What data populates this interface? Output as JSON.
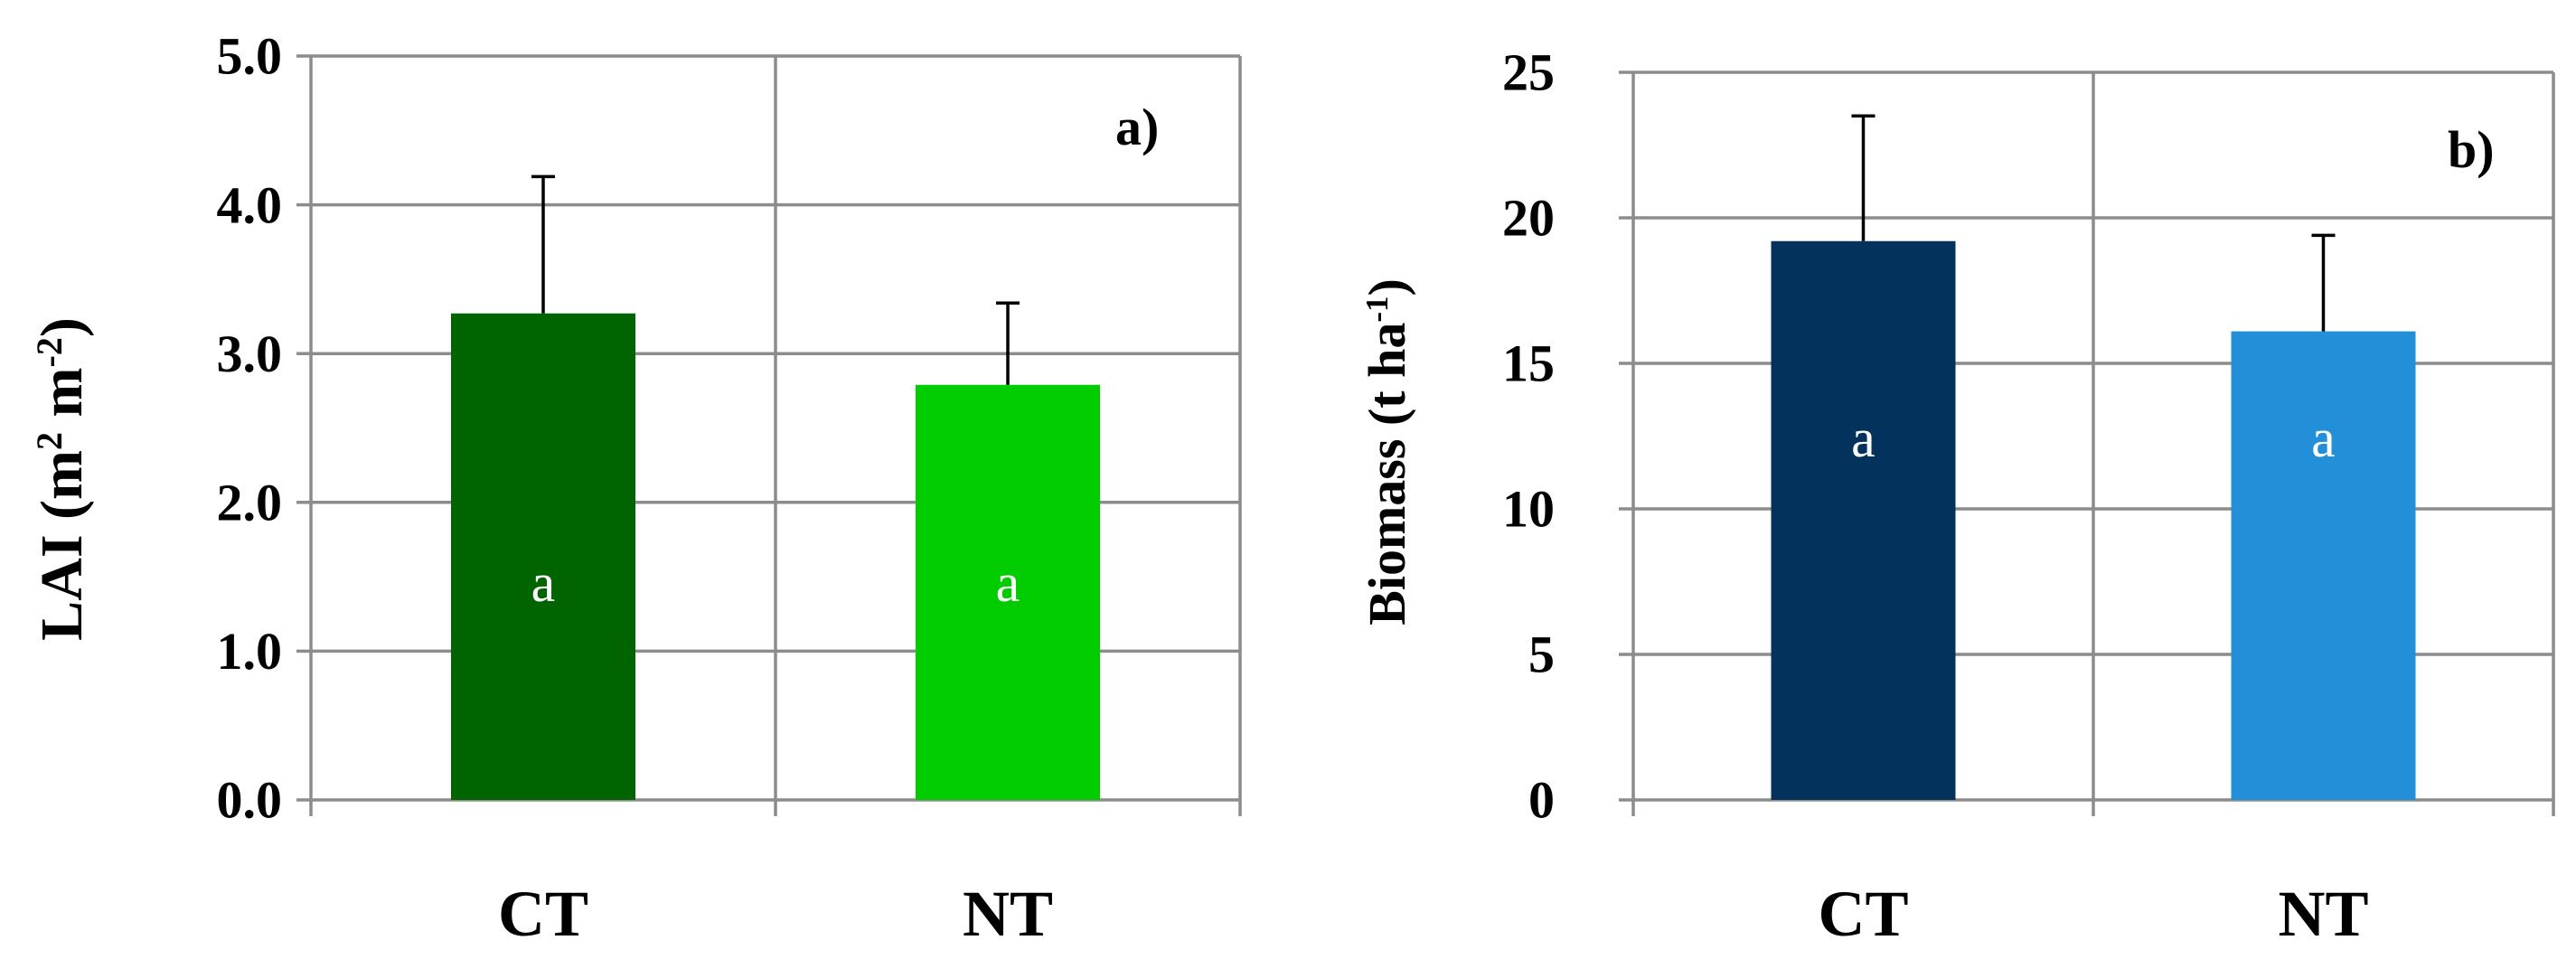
{
  "chart_data": [
    {
      "type": "bar",
      "panel_label": "a)",
      "ylabel": "LAI (m",
      "ylabel_parts": [
        "LAI (m",
        "2",
        " m",
        "-2",
        ")"
      ],
      "categories": [
        "CT",
        "NT"
      ],
      "values": [
        3.27,
        2.79
      ],
      "errors": [
        0.92,
        0.55
      ],
      "bar_labels": [
        "a",
        "a"
      ],
      "colors": [
        "#006400",
        "#00CC00"
      ],
      "ylim": [
        0,
        5
      ],
      "yticks": [
        0,
        1,
        2,
        3,
        4,
        5
      ],
      "ytick_labels": [
        "0.0",
        "1.0",
        "2.0",
        "3.0",
        "4.0",
        "5.0"
      ],
      "grid": true
    },
    {
      "type": "bar",
      "panel_label": "b)",
      "ylabel": "Biomass (t ha",
      "ylabel_parts": [
        "Biomass (t ha",
        "-1",
        ")"
      ],
      "categories": [
        "CT",
        "NT"
      ],
      "values": [
        19.2,
        16.1
      ],
      "errors": [
        4.3,
        3.3
      ],
      "bar_labels": [
        "a",
        "a"
      ],
      "colors": [
        "#03335C",
        "#228FD8"
      ],
      "ylim": [
        0,
        25
      ],
      "yticks": [
        0,
        5,
        10,
        15,
        20,
        25
      ],
      "ytick_labels": [
        "0",
        "5",
        "10",
        "15",
        "20",
        "25"
      ],
      "grid": true
    }
  ]
}
